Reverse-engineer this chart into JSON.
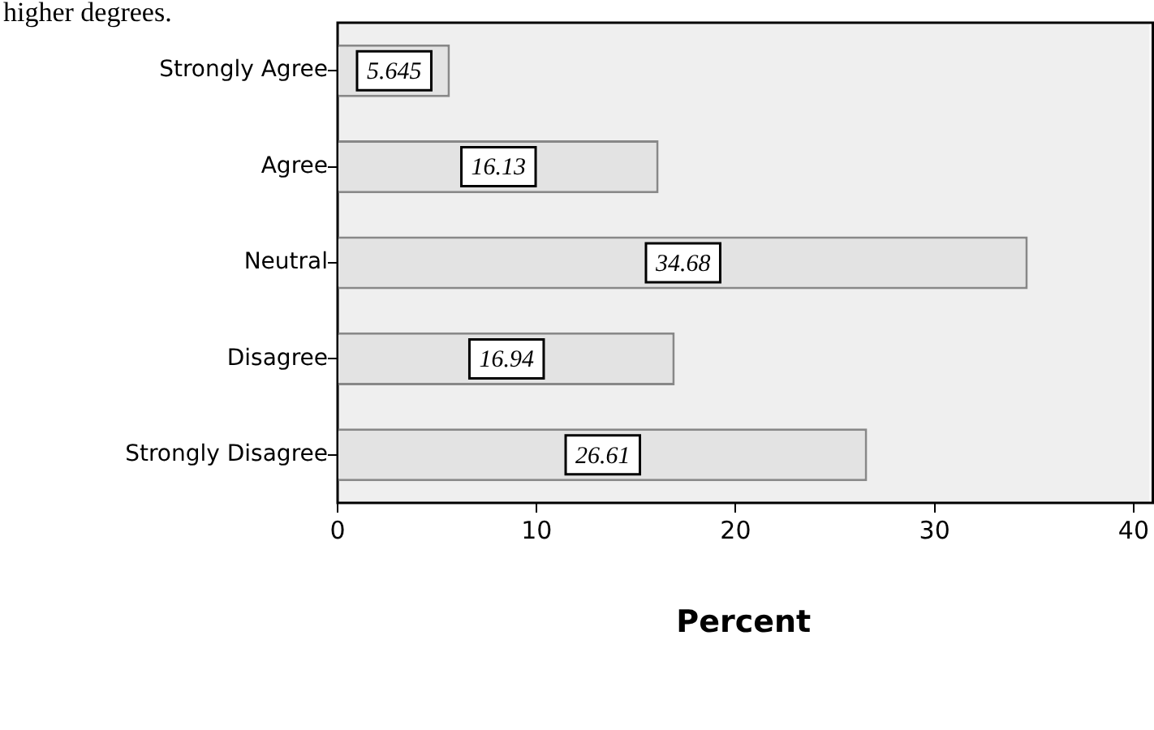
{
  "chart_data": {
    "type": "bar",
    "orientation": "horizontal",
    "xlabel": "Percent",
    "categories": [
      "Strongly Agree",
      "Agree",
      "Neutral",
      "Disagree",
      "Strongly Disagree"
    ],
    "values": [
      5.645,
      16.13,
      34.68,
      16.94,
      26.61
    ],
    "color": "#e3e3e3",
    "xlim": [
      0,
      40.8
    ],
    "xticks": [
      0,
      10,
      20,
      30,
      40
    ],
    "data_labels": true,
    "grid": false,
    "legend": false,
    "annotations": [
      "higher degrees."
    ]
  }
}
